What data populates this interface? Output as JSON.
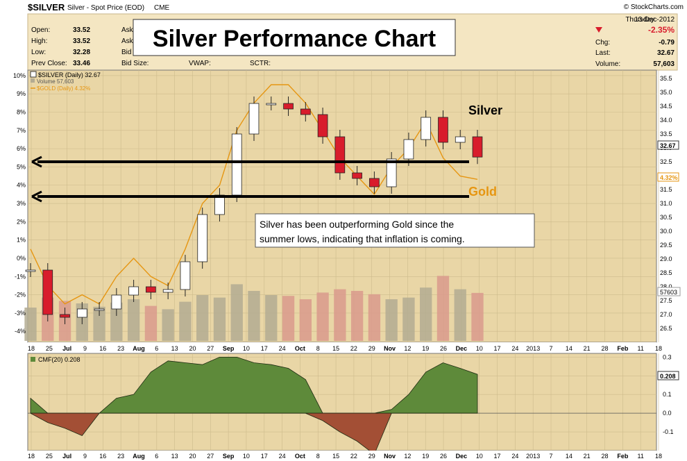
{
  "header": {
    "symbol": "$SILVER",
    "description": "Silver - Spot Price (EOD)",
    "exchange": "CME",
    "source": "© StockCharts.com",
    "day": "Thursday",
    "date": "13-Dec-2012",
    "quote": {
      "open_label": "Open:",
      "open": "33.52",
      "high_label": "High:",
      "high": "33.52",
      "low_label": "Low:",
      "low": "32.28",
      "prev_label": "Prev Close:",
      "prev": "33.46",
      "ask_label": "Ask",
      "bid_label": "Bid",
      "bidsize_label": "Bid Size:",
      "vwap_label": "VWAP:",
      "sctr_label": "SCTR:",
      "change_pct": "-2.35%",
      "chg_label": "Chg:",
      "chg": "-0.79",
      "last_label": "Last:",
      "last": "32.67",
      "volume_label": "Volume:",
      "volume": "57,603"
    }
  },
  "annotations": {
    "title": "Silver Performance Chart",
    "note_line1": "Silver has been outperforming Gold since the",
    "note_line2": "summer lows, indicating that inflation is coming.",
    "silver_label": "Silver",
    "gold_label": "Gold"
  },
  "legend": {
    "price": "$SILVER (Daily) 32.67",
    "volume": "Volume 57,603",
    "gold": "$GOLD (Daily) 4.32%",
    "cmf": "CMF(20) 0.208"
  },
  "price_panel": {
    "left_ticks": [
      "10%",
      "9%",
      "8%",
      "7%",
      "6%",
      "5%",
      "4%",
      "3%",
      "2%",
      "1%",
      "0%",
      "-1%",
      "-2%",
      "-3%",
      "-4%"
    ],
    "right_ticks": [
      "35.5",
      "35.0",
      "34.5",
      "34.0",
      "33.5",
      "33.0",
      "32.5",
      "32.0",
      "31.5",
      "31.0",
      "30.5",
      "30.0",
      "29.5",
      "29.0",
      "28.5",
      "28.0",
      "27.5",
      "27.0",
      "26.5"
    ],
    "right_labels": {
      "price": "32.67",
      "gold": "4.32%",
      "volume": "57603"
    }
  },
  "cmf_panel": {
    "right_ticks": [
      "0.3",
      "0.2",
      "0.1",
      "0.0",
      "-0.1"
    ],
    "right_label": "0.208"
  },
  "date_axis": [
    "18",
    "25",
    "Jul",
    "9",
    "16",
    "23",
    "Aug",
    "6",
    "13",
    "20",
    "27",
    "Sep",
    "10",
    "17",
    "24",
    "Oct",
    "8",
    "15",
    "22",
    "29",
    "Nov",
    "12",
    "19",
    "26",
    "Dec",
    "10",
    "17",
    "24",
    "2013",
    "7",
    "14",
    "21",
    "28",
    "Feb",
    "11",
    "18"
  ],
  "colors": {
    "panel_bg": "#e9d6a6",
    "up": "#ffffff",
    "down": "#d81c2c",
    "gold": "#e69612",
    "cmf_pos": "#5e8a3a",
    "cmf_neg": "#a34f35",
    "vol_up": "#b3ab92",
    "vol_down": "#d99a8c"
  },
  "chart_data": {
    "type": "candlestick",
    "x": [
      "2012-06-18",
      "2012-06-25",
      "2012-07-02",
      "2012-07-09",
      "2012-07-16",
      "2012-07-23",
      "2012-07-30",
      "2012-08-06",
      "2012-08-13",
      "2012-08-20",
      "2012-08-27",
      "2012-09-03",
      "2012-09-10",
      "2012-09-17",
      "2012-09-24",
      "2012-10-01",
      "2012-10-08",
      "2012-10-15",
      "2012-10-22",
      "2012-10-29",
      "2012-11-05",
      "2012-11-12",
      "2012-11-19",
      "2012-11-26",
      "2012-12-03",
      "2012-12-10",
      "2012-12-13"
    ],
    "series": [
      {
        "name": "$SILVER",
        "close": [
          28.6,
          27.0,
          26.9,
          27.2,
          27.2,
          27.7,
          28.0,
          27.8,
          27.9,
          28.9,
          30.6,
          31.3,
          33.5,
          34.6,
          34.6,
          34.4,
          34.2,
          33.4,
          32.1,
          31.9,
          31.6,
          32.6,
          33.3,
          34.1,
          33.2,
          33.4,
          32.67
        ]
      },
      {
        "name": "$GOLD",
        "values_pct": [
          0.5,
          -1.5,
          -2.5,
          -2.0,
          -2.5,
          -1.0,
          0.0,
          -1.0,
          -1.5,
          0.5,
          3.0,
          4.0,
          7.0,
          8.5,
          9.5,
          9.5,
          8.5,
          7.0,
          5.5,
          4.5,
          3.5,
          5.0,
          6.0,
          7.5,
          5.5,
          4.5,
          4.32
        ]
      },
      {
        "name": "Volume",
        "values": [
          40000,
          52000,
          48000,
          45000,
          41000,
          46000,
          50000,
          42000,
          38000,
          47000,
          55000,
          52000,
          68000,
          60000,
          55000,
          54000,
          50000,
          58000,
          62000,
          60000,
          56000,
          50000,
          52000,
          64000,
          78000,
          62000,
          57603
        ]
      },
      {
        "name": "CMF(20)",
        "values": [
          0.08,
          -0.05,
          -0.08,
          -0.12,
          0.0,
          0.08,
          0.1,
          0.22,
          0.28,
          0.27,
          0.26,
          0.3,
          0.3,
          0.27,
          0.26,
          0.24,
          0.18,
          -0.04,
          -0.1,
          -0.15,
          -0.22,
          0.02,
          0.1,
          0.22,
          0.27,
          0.24,
          0.208
        ]
      }
    ],
    "ylim_price": [
      26.0,
      35.8
    ],
    "ylim_pct": [
      -4.6,
      10.3
    ],
    "ylim_cmf": [
      -0.2,
      0.32
    ],
    "horizontal_lines": [
      32.5,
      31.25
    ]
  }
}
